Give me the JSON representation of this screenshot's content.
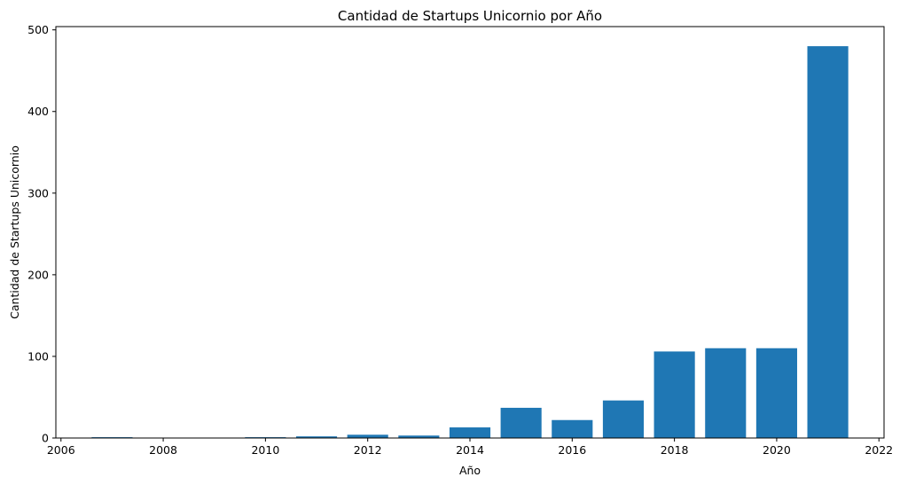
{
  "chart_data": {
    "type": "bar",
    "title": "Cantidad de Startups Unicornio por Año",
    "xlabel": "Año",
    "ylabel": "Cantidad de Startups Unicornio",
    "x": [
      2007,
      2008,
      2010,
      2011,
      2012,
      2013,
      2014,
      2015,
      2016,
      2017,
      2018,
      2019,
      2020,
      2021
    ],
    "values": [
      1,
      0,
      1,
      2,
      4,
      3,
      13,
      37,
      22,
      46,
      106,
      110,
      110,
      480
    ],
    "xlim": [
      2005.9,
      2022.1
    ],
    "ylim": [
      0,
      504
    ],
    "xticks": [
      2006,
      2008,
      2010,
      2012,
      2014,
      2016,
      2018,
      2020,
      2022
    ],
    "yticks": [
      0,
      100,
      200,
      300,
      400,
      500
    ],
    "bar_color": "#1f77b4",
    "grid": false,
    "legend": "none"
  }
}
